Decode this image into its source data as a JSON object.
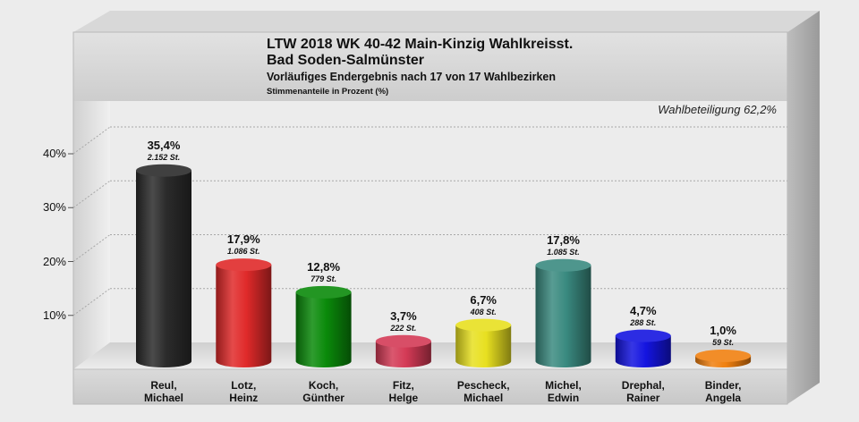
{
  "header": {
    "title_line1": "LTW 2018 WK 40-42 Main-Kinzig Wahlkreisst.",
    "title_line2": "Bad Soden-Salmünster",
    "subtitle": "Vorläufiges Endergebnis nach 17 von 17 Wahlbezirken",
    "unit_note": "Stimmenanteile in Prozent (%)"
  },
  "turnout_label": "Wahlbeteiligung 62,2%",
  "chart_data": {
    "type": "bar",
    "title": "LTW 2018 WK 40-42 Main-Kinzig Wahlkreisst. Bad Soden-Salmünster",
    "subtitle": "Vorläufiges Endergebnis nach 17 von 17 Wahlbezirken",
    "ylabel": "Stimmenanteile in Prozent (%)",
    "ylim": [
      0,
      40
    ],
    "yticks": [
      10,
      20,
      30,
      40
    ],
    "ytick_labels": [
      "10%",
      "20%",
      "30%",
      "40%"
    ],
    "grid": true,
    "categories": [
      [
        "Reul,",
        "Michael"
      ],
      [
        "Lotz,",
        "Heinz"
      ],
      [
        "Koch,",
        "Günther"
      ],
      [
        "Fitz,",
        "Helge"
      ],
      [
        "Pescheck,",
        "Michael"
      ],
      [
        "Michel,",
        "Edwin"
      ],
      [
        "Drephal,",
        "Rainer"
      ],
      [
        "Binder,",
        "Angela"
      ]
    ],
    "values": [
      35.4,
      17.9,
      12.8,
      3.7,
      6.7,
      17.8,
      4.7,
      1.0
    ],
    "value_labels": [
      "35,4%",
      "17,9%",
      "12,8%",
      "3,7%",
      "6,7%",
      "17,8%",
      "4,7%",
      "1,0%"
    ],
    "votes": [
      2152,
      1086,
      779,
      222,
      408,
      1085,
      288,
      59
    ],
    "vote_labels": [
      "2.152 St.",
      "1.086 St.",
      "779 St.",
      "222 St.",
      "408 St.",
      "1.085 St.",
      "288 St.",
      "59 St."
    ],
    "colors": [
      "#2b2b2b",
      "#e02a2a",
      "#0a8a0a",
      "#d43a56",
      "#e8e020",
      "#3a8a80",
      "#1414e0",
      "#f08010"
    ]
  }
}
